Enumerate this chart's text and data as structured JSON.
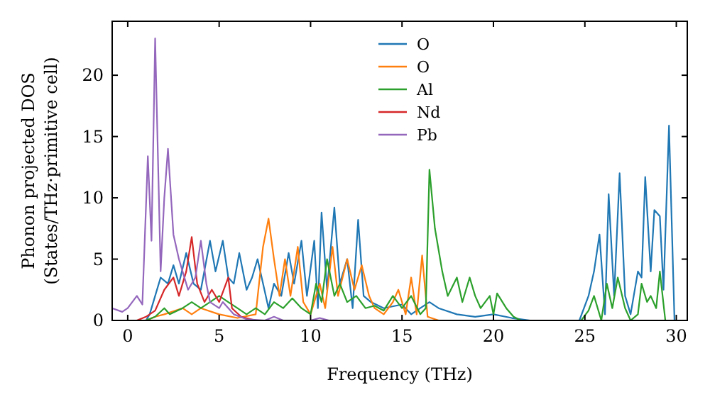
{
  "chart_data": {
    "type": "line",
    "xlabel": "Frequency (THz)",
    "ylabel": "Phonon projected DOS\n(States/THz·primitive cell)",
    "xlim": [
      -0.85,
      30.6
    ],
    "ylim": [
      0,
      24.4
    ],
    "xticks": [
      0,
      5,
      10,
      15,
      20,
      25,
      30
    ],
    "yticks": [
      0,
      5,
      10,
      15,
      20
    ],
    "legend": "top center",
    "grid": false,
    "series": [
      {
        "name": "O",
        "color": "#1f77b4",
        "x": [
          1,
          1.2,
          1.5,
          1.8,
          2.2,
          2.5,
          2.8,
          3.2,
          3.6,
          4,
          4.5,
          4.8,
          5.2,
          5.5,
          5.8,
          6.1,
          6.5,
          6.8,
          7.1,
          7.4,
          7.7,
          8,
          8.4,
          8.8,
          9.1,
          9.5,
          9.8,
          10.2,
          10.4,
          10.6,
          10.9,
          11.3,
          11.6,
          12,
          12.3,
          12.6,
          12.9,
          13.3,
          14,
          15,
          15.5,
          16,
          16.5,
          17,
          18,
          19,
          20,
          21,
          22,
          24.7,
          25.2,
          25.5,
          25.8,
          26.1,
          26.3,
          26.6,
          26.9,
          27.2,
          27.5,
          27.9,
          28.1,
          28.3,
          28.6,
          28.8,
          29.1,
          29.3,
          29.6,
          29.9
        ],
        "values": [
          0,
          0.5,
          2,
          3.5,
          3,
          4.5,
          3,
          5.5,
          3,
          2.5,
          6.5,
          4,
          6.5,
          3.5,
          3,
          5.5,
          2.5,
          3.5,
          5,
          3,
          1,
          3,
          2,
          5.5,
          3,
          6.5,
          2,
          6.5,
          1,
          8.8,
          2.5,
          9.2,
          3,
          5,
          1,
          8.2,
          2,
          1.5,
          1,
          1.3,
          0.5,
          1,
          1.5,
          1,
          0.5,
          0.3,
          0.5,
          0.2,
          0,
          0,
          2,
          4,
          7,
          0.5,
          10.3,
          2,
          12,
          2,
          0.5,
          4,
          3.5,
          11.7,
          4,
          9,
          8.5,
          2.5,
          15.9,
          0
        ]
      },
      {
        "name": "O",
        "color": "#ff7f0e",
        "x": [
          1,
          1.5,
          2,
          3,
          3.5,
          4,
          5,
          6,
          7,
          7.4,
          7.7,
          8,
          8.3,
          8.6,
          8.9,
          9.3,
          9.6,
          10,
          10.5,
          10.8,
          11.2,
          11.5,
          12,
          12.4,
          12.8,
          13.2,
          13.5,
          14,
          14.5,
          14.8,
          15.2,
          15.5,
          15.8,
          16.1,
          16.4,
          17
        ],
        "values": [
          0,
          0.3,
          0.5,
          1,
          0.5,
          1,
          0.5,
          0.2,
          0.5,
          6,
          8.3,
          5,
          2,
          5,
          2,
          6,
          1.5,
          0.5,
          3,
          1,
          6,
          2,
          5,
          2.5,
          4.5,
          2,
          1,
          0.5,
          1.5,
          2.5,
          0.5,
          3.5,
          0.5,
          5.3,
          0.3,
          0
        ]
      },
      {
        "name": "Al",
        "color": "#2ca02c",
        "x": [
          1,
          1.5,
          2,
          2.3,
          3,
          3.5,
          4,
          4.5,
          5,
          5.5,
          6,
          6.5,
          7,
          7.5,
          8,
          8.5,
          9,
          9.5,
          10,
          10.3,
          10.6,
          10.9,
          11.3,
          11.6,
          12,
          12.5,
          13,
          13.5,
          14,
          14.5,
          15,
          15.5,
          16,
          16.3,
          16.5,
          16.8,
          17.2,
          17.5,
          18,
          18.3,
          18.7,
          19,
          19.3,
          19.8,
          20,
          20.2,
          20.7,
          21.1,
          21.5,
          24.8,
          25.2,
          25.5,
          25.9,
          26.2,
          26.5,
          26.8,
          27.2,
          27.5,
          27.9,
          28.1,
          28.4,
          28.6,
          28.9,
          29.1,
          29.4
        ],
        "values": [
          0,
          0.3,
          1,
          0.5,
          1,
          1.5,
          1,
          1.5,
          2,
          1.5,
          1,
          0.5,
          1,
          0.5,
          1.5,
          1,
          1.8,
          1,
          0.5,
          3,
          1.5,
          5,
          2,
          3,
          1.5,
          2,
          1,
          1.2,
          0.8,
          2,
          1,
          2,
          0.5,
          1,
          12.3,
          7.5,
          4,
          2,
          3.5,
          1.5,
          3.5,
          2,
          1,
          2,
          0.5,
          2.2,
          1,
          0.3,
          0,
          0,
          0.8,
          2,
          0,
          3,
          1,
          3.5,
          1,
          0,
          0.5,
          3,
          1.5,
          2,
          1,
          4,
          0
        ]
      },
      {
        "name": "Nd",
        "color": "#d62728",
        "x": [
          0.5,
          1,
          1.5,
          2,
          2.5,
          2.8,
          3.2,
          3.5,
          3.8,
          4.2,
          4.6,
          5,
          5.5,
          5.7,
          6.2,
          7
        ],
        "values": [
          0,
          0.3,
          0.8,
          2.5,
          3.5,
          2,
          4,
          6.8,
          3,
          1.5,
          2.5,
          1.5,
          3.5,
          1,
          0.3,
          0
        ]
      },
      {
        "name": "Pb",
        "color": "#9467bd",
        "x": [
          -0.85,
          -0.3,
          0,
          0.5,
          0.8,
          1.1,
          1.3,
          1.5,
          1.8,
          2,
          2.2,
          2.5,
          2.8,
          3,
          3.3,
          3.7,
          4,
          4.3,
          4.5,
          5,
          5.2,
          5.8,
          6.5,
          7.5,
          8,
          8.5,
          10,
          10.5,
          11
        ],
        "values": [
          1,
          0.7,
          1,
          2,
          1.3,
          13.4,
          6.5,
          23,
          4,
          10,
          14,
          7,
          5,
          4,
          2.5,
          3.5,
          6.5,
          3,
          1.5,
          1,
          1.5,
          0.5,
          0.1,
          0,
          0.3,
          0,
          0,
          0.2,
          0
        ]
      }
    ]
  }
}
